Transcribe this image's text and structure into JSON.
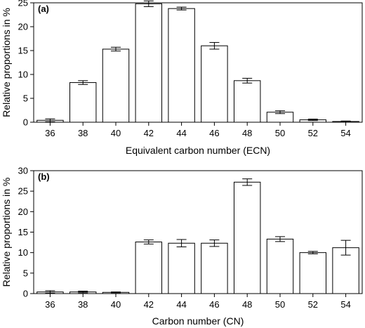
{
  "chart_data": [
    {
      "type": "bar",
      "panel_label": "(a)",
      "xlabel": "Equivalent carbon number (ECN)",
      "ylabel": "Relative proportions in %",
      "categories": [
        "36",
        "38",
        "40",
        "42",
        "44",
        "46",
        "48",
        "50",
        "52",
        "54"
      ],
      "values": [
        0.4,
        8.3,
        15.3,
        24.8,
        23.8,
        16.0,
        8.7,
        2.1,
        0.5,
        0.15
      ],
      "errors": [
        0.3,
        0.4,
        0.4,
        0.6,
        0.3,
        0.7,
        0.5,
        0.3,
        0.15,
        0.1
      ],
      "ylim": [
        0,
        25
      ],
      "yticks": [
        0,
        5,
        10,
        15,
        20,
        25
      ],
      "grid": false,
      "legend": "none"
    },
    {
      "type": "bar",
      "panel_label": "(b)",
      "xlabel": "Carbon number (CN)",
      "ylabel": "Relative proportions in %",
      "categories": [
        "36",
        "38",
        "40",
        "42",
        "44",
        "46",
        "48",
        "50",
        "52",
        "54"
      ],
      "values": [
        0.4,
        0.4,
        0.3,
        12.6,
        12.3,
        12.3,
        27.2,
        13.3,
        10.0,
        11.2
      ],
      "errors": [
        0.3,
        0.2,
        0.1,
        0.5,
        0.9,
        0.8,
        0.8,
        0.6,
        0.3,
        1.8
      ],
      "ylim": [
        0,
        30
      ],
      "yticks": [
        0,
        5,
        10,
        15,
        20,
        25,
        30
      ],
      "grid": false,
      "legend": "none"
    }
  ]
}
